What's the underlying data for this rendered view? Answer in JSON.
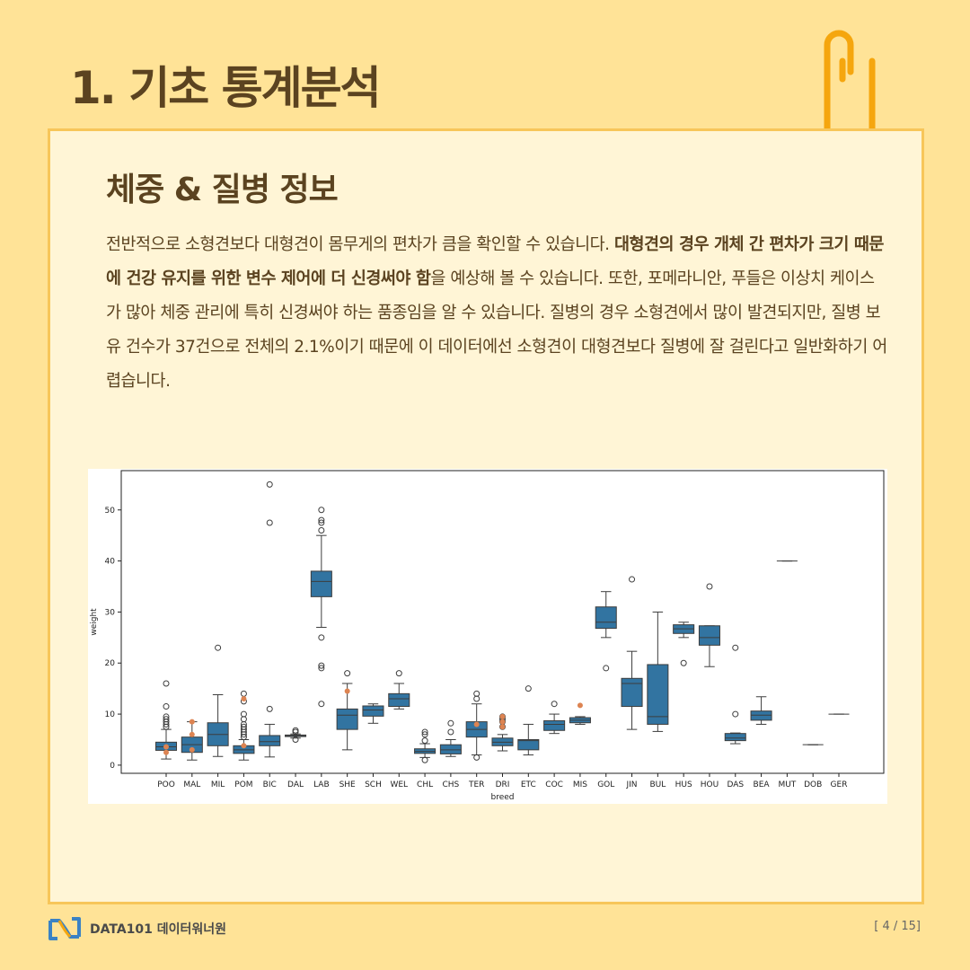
{
  "header": {
    "title": "1. 기초 통계분석",
    "subtitle": "체중 & 질병 정보"
  },
  "paragraph": [
    {
      "text": "전반적으로 소형견보다 대형견이 몸무게의 편차가 큼을 확인할 수 있습니다. ",
      "bold": false
    },
    {
      "text": "대형견의 경우 개체 간 편차가 크기 때문에 건강 유지를 위한 변수 제어에 더 신경써야 함",
      "bold": true
    },
    {
      "text": "을 예상해 볼 수 있습니다. 또한, 포메라니안, 푸들은 이상치 케이스가 많아 체중 관리에 특히 신경써야 하는 품종임을 알 수 있습니다. 질병의 경우 소형견에서 많이 발견되지만, 질병 보유 건수가 37건으로 전체의 2.1%이기 때문에 이 데이터에선 소형견이 대형견보다 질병에 잘 걸린다고 일반화하기 어렵습니다.",
      "bold": false
    }
  ],
  "chart_data": {
    "type": "box",
    "xlabel": "breed",
    "ylabel": "weight",
    "color": "#3274a1",
    "ylim": [
      -1.6,
      57.7
    ],
    "yticks": [
      0,
      10,
      20,
      30,
      40,
      50
    ],
    "categories": [
      "POO",
      "MAL",
      "MIL",
      "POM",
      "BIC",
      "DAL",
      "LAB",
      "SHE",
      "SCH",
      "WEL",
      "CHL",
      "CHS",
      "TER",
      "DRI",
      "ETC",
      "COC",
      "MIS",
      "GOL",
      "JIN",
      "BUL",
      "HUS",
      "HOU",
      "DAS",
      "BEA",
      "MUT",
      "DOB",
      "GER"
    ],
    "boxes": [
      {
        "low": 1.2,
        "q1": 2.9,
        "median": 3.6,
        "q3": 4.5,
        "high": 7,
        "outliers": [
          7.5,
          8,
          8.5,
          9,
          9.5,
          11.5,
          16
        ]
      },
      {
        "low": 1,
        "q1": 2.5,
        "median": 4,
        "q3": 5.5,
        "high": 8.5,
        "outliers": []
      },
      {
        "low": 1.7,
        "q1": 3.8,
        "median": 6,
        "q3": 8.3,
        "high": 13.8,
        "outliers": [
          23
        ]
      },
      {
        "low": 1,
        "q1": 2.3,
        "median": 3,
        "q3": 3.8,
        "high": 5,
        "outliers": [
          5.5,
          6,
          6.5,
          7,
          7.5,
          8,
          9,
          10,
          12.5,
          14
        ]
      },
      {
        "low": 1.6,
        "q1": 3.8,
        "median": 4.6,
        "q3": 5.8,
        "high": 8,
        "outliers": [
          11,
          47.5,
          55
        ]
      },
      {
        "low": 5.3,
        "q1": 5.6,
        "median": 5.8,
        "q3": 5.9,
        "high": 6.1,
        "outliers": [
          5,
          6.5,
          6.8
        ]
      },
      {
        "low": 27,
        "q1": 33,
        "median": 36,
        "q3": 38,
        "high": 45,
        "outliers": [
          12,
          19,
          19.5,
          25,
          46,
          47.5,
          48,
          50
        ]
      },
      {
        "low": 3,
        "q1": 7,
        "median": 9.8,
        "q3": 11,
        "high": 16,
        "outliers": [
          18
        ]
      },
      {
        "low": 8.2,
        "q1": 9.6,
        "median": 10.8,
        "q3": 11.6,
        "high": 12,
        "outliers": []
      },
      {
        "low": 11,
        "q1": 11.5,
        "median": 13,
        "q3": 14,
        "high": 16,
        "outliers": [
          18
        ]
      },
      {
        "low": 1.5,
        "q1": 2.3,
        "median": 2.7,
        "q3": 3.2,
        "high": 4.2,
        "outliers": [
          1,
          4.8,
          6,
          6.5
        ]
      },
      {
        "low": 1.7,
        "q1": 2.2,
        "median": 3,
        "q3": 4,
        "high": 5,
        "outliers": [
          6.5,
          8.2
        ]
      },
      {
        "low": 2,
        "q1": 5.5,
        "median": 7,
        "q3": 8.5,
        "high": 12,
        "outliers": [
          1.5,
          13,
          14
        ]
      },
      {
        "low": 2.8,
        "q1": 3.8,
        "median": 4.5,
        "q3": 5.3,
        "high": 6,
        "outliers": [
          7.5,
          8.5,
          9,
          9.5
        ]
      },
      {
        "low": 2,
        "q1": 3,
        "median": 4.8,
        "q3": 5,
        "high": 8,
        "outliers": [
          15
        ]
      },
      {
        "low": 6.2,
        "q1": 6.8,
        "median": 8,
        "q3": 8.7,
        "high": 10,
        "outliers": [
          12
        ]
      },
      {
        "low": 8,
        "q1": 8.3,
        "median": 8.8,
        "q3": 9.3,
        "high": 9.5,
        "outliers": []
      },
      {
        "low": 25,
        "q1": 26.8,
        "median": 28,
        "q3": 31,
        "high": 34,
        "outliers": [
          19
        ]
      },
      {
        "low": 7,
        "q1": 11.5,
        "median": 16,
        "q3": 17,
        "high": 22.3,
        "outliers": [
          36.4
        ]
      },
      {
        "low": 6.6,
        "q1": 8,
        "median": 9.5,
        "q3": 19.7,
        "high": 30,
        "outliers": []
      },
      {
        "low": 25,
        "q1": 25.8,
        "median": 26.7,
        "q3": 27.5,
        "high": 28,
        "outliers": [
          20
        ]
      },
      {
        "low": 19.3,
        "q1": 23.5,
        "median": 25,
        "q3": 27.3,
        "high": 27.3,
        "outliers": [
          35
        ]
      },
      {
        "low": 4.2,
        "q1": 4.8,
        "median": 5.3,
        "q3": 6.2,
        "high": 6.3,
        "outliers": [
          10,
          23
        ]
      },
      {
        "low": 8,
        "q1": 8.8,
        "median": 9.8,
        "q3": 10.6,
        "high": 13.4,
        "outliers": []
      },
      {
        "low": 40,
        "q1": 40,
        "median": 40,
        "q3": 40,
        "high": 40,
        "outliers": []
      },
      {
        "low": 4,
        "q1": 4,
        "median": 4,
        "q3": 4,
        "high": 4,
        "outliers": []
      },
      {
        "low": 10,
        "q1": 10,
        "median": 10,
        "q3": 10,
        "high": 10,
        "outliers": []
      }
    ],
    "points": {
      "color": "#dd8452",
      "x": [
        "POO",
        "POO",
        "MAL",
        "MAL",
        "MAL",
        "POM",
        "POM",
        "SHE",
        "TER",
        "DRI",
        "DRI",
        "DRI",
        "MIS"
      ],
      "y": [
        3.6,
        2.5,
        8.5,
        6,
        3,
        13,
        3.8,
        14.5,
        8,
        9.5,
        8.5,
        7.5,
        11.7
      ]
    }
  },
  "footer": {
    "brand": "DATA101 데이터워너원",
    "page": "[ 4 / 15]"
  }
}
